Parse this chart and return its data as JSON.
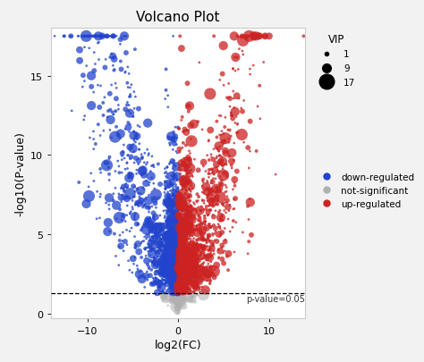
{
  "title": "Volcano Plot",
  "xlabel": "log2(FC)",
  "ylabel": "-log10(P-value)",
  "xlim": [
    -14,
    14
  ],
  "ylim": [
    -0.3,
    18
  ],
  "yticks": [
    0,
    5,
    10,
    15
  ],
  "xticks": [
    -10,
    0,
    10
  ],
  "pvalue_threshold": 1.301,
  "pvalue_label": "p-value=0.05",
  "background_color": "#f2f2f2",
  "plot_bg_color": "#ffffff",
  "colors": {
    "up": "#cc2222",
    "down": "#2244cc",
    "ns": "#b0b0b0"
  },
  "n_points": 3000,
  "seed": 42,
  "vip_legend_sizes": [
    3,
    7,
    12
  ],
  "vip_legend_labels": [
    "1",
    "9",
    "17"
  ]
}
